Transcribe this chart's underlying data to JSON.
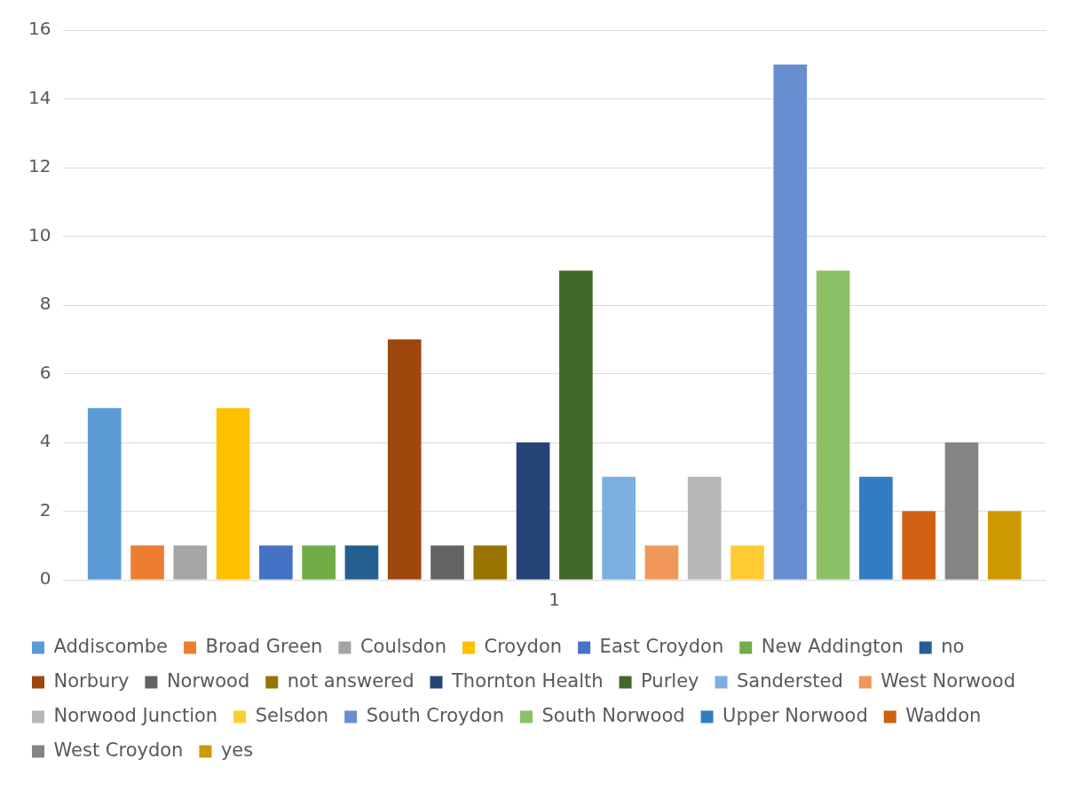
{
  "chart_data": {
    "type": "bar",
    "categories": [
      "1"
    ],
    "ylim": [
      0,
      16
    ],
    "yticks": [
      0,
      2,
      4,
      6,
      8,
      10,
      12,
      14,
      16
    ],
    "grid": "y",
    "legend": "bottom",
    "series": [
      {
        "name": "Addiscombe",
        "color": "#5b9bd5",
        "values": [
          5
        ]
      },
      {
        "name": "Broad Green",
        "color": "#ed7d31",
        "values": [
          1
        ]
      },
      {
        "name": "Coulsdon",
        "color": "#a5a5a5",
        "values": [
          1
        ]
      },
      {
        "name": "Croydon",
        "color": "#ffc000",
        "values": [
          5
        ]
      },
      {
        "name": "East Croydon",
        "color": "#4472c4",
        "values": [
          1
        ]
      },
      {
        "name": "New Addington",
        "color": "#70ad47",
        "values": [
          1
        ]
      },
      {
        "name": "no",
        "color": "#255e91",
        "values": [
          1
        ]
      },
      {
        "name": "Norbury",
        "color": "#9e480e",
        "values": [
          7
        ]
      },
      {
        "name": "Norwood",
        "color": "#636363",
        "values": [
          1
        ]
      },
      {
        "name": "not answered",
        "color": "#997300",
        "values": [
          1
        ]
      },
      {
        "name": "Thornton Health",
        "color": "#264478",
        "values": [
          4
        ]
      },
      {
        "name": "Purley",
        "color": "#43682b",
        "values": [
          9
        ]
      },
      {
        "name": "Sandersted",
        "color": "#7cafdd",
        "values": [
          3
        ]
      },
      {
        "name": "West Norwood",
        "color": "#f1975a",
        "values": [
          1
        ]
      },
      {
        "name": "Norwood Junction",
        "color": "#b7b7b7",
        "values": [
          3
        ]
      },
      {
        "name": "Selsdon",
        "color": "#ffcd33",
        "values": [
          1
        ]
      },
      {
        "name": "South Croydon",
        "color": "#698ed0",
        "values": [
          15
        ]
      },
      {
        "name": "South Norwood",
        "color": "#8cc168",
        "values": [
          9
        ]
      },
      {
        "name": "Upper Norwood",
        "color": "#327dc2",
        "values": [
          3
        ]
      },
      {
        "name": "Waddon",
        "color": "#d26012",
        "values": [
          2
        ]
      },
      {
        "name": "West Croydon",
        "color": "#848484",
        "values": [
          4
        ]
      },
      {
        "name": "yes",
        "color": "#cc9a00",
        "values": [
          2
        ]
      }
    ]
  }
}
